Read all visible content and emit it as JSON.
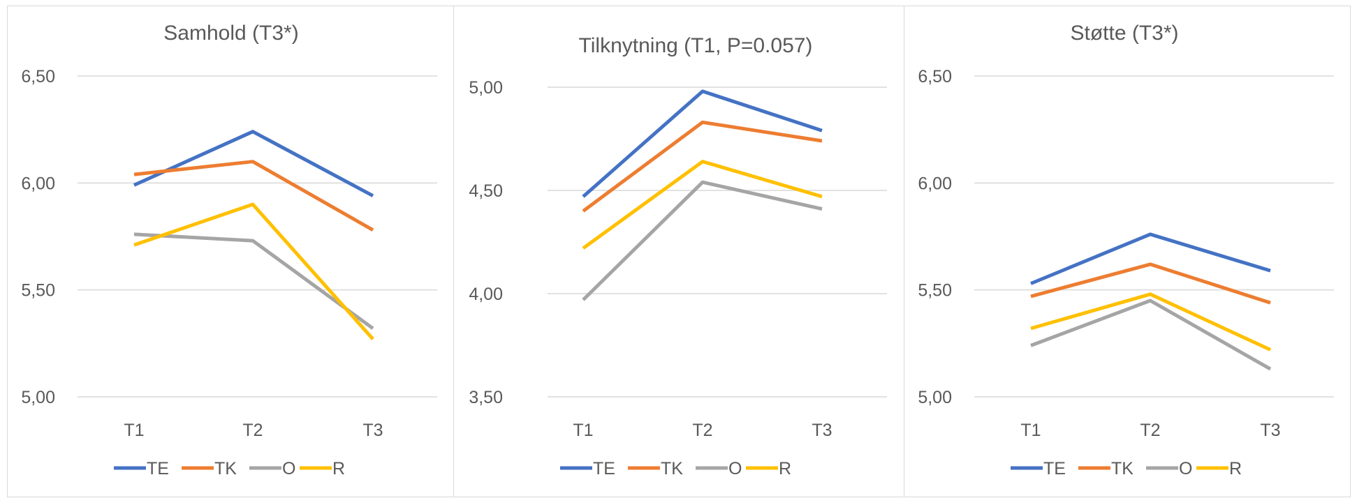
{
  "chart_data": [
    {
      "type": "line",
      "title": "Samhold (T3*)",
      "categories": [
        "T1",
        "T2",
        "T3"
      ],
      "ylim": [
        5.0,
        6.5
      ],
      "yticks": [
        "5,00",
        "5,50",
        "6,00",
        "6,50"
      ],
      "grid": true,
      "legend_position": "bottom",
      "series": [
        {
          "name": "TE",
          "values": [
            5.99,
            6.24,
            5.94
          ],
          "color": "#4472c4"
        },
        {
          "name": "TK",
          "values": [
            6.04,
            6.1,
            5.78
          ],
          "color": "#ed7d31"
        },
        {
          "name": "O",
          "values": [
            5.76,
            5.73,
            5.32
          ],
          "color": "#a5a5a5"
        },
        {
          "name": "R",
          "values": [
            5.71,
            5.9,
            5.27
          ],
          "color": "#ffc000"
        }
      ]
    },
    {
      "type": "line",
      "title": "Tilknytning (T1, P=0.057)",
      "categories": [
        "T1",
        "T2",
        "T3"
      ],
      "ylim": [
        3.5,
        5.0
      ],
      "yticks": [
        "3,50",
        "4,00",
        "4,50",
        "5,00"
      ],
      "grid": true,
      "legend_position": "bottom",
      "series": [
        {
          "name": "TE",
          "values": [
            4.47,
            4.98,
            4.79
          ],
          "color": "#4472c4"
        },
        {
          "name": "TK",
          "values": [
            4.4,
            4.83,
            4.74
          ],
          "color": "#ed7d31"
        },
        {
          "name": "O",
          "values": [
            3.97,
            4.54,
            4.41
          ],
          "color": "#a5a5a5"
        },
        {
          "name": "R",
          "values": [
            4.22,
            4.64,
            4.47
          ],
          "color": "#ffc000"
        }
      ]
    },
    {
      "type": "line",
      "title": "Støtte (T3*)",
      "categories": [
        "T1",
        "T2",
        "T3"
      ],
      "ylim": [
        5.0,
        6.5
      ],
      "yticks": [
        "5,00",
        "5,50",
        "6,00",
        "6,50"
      ],
      "grid": true,
      "legend_position": "bottom",
      "series": [
        {
          "name": "TE",
          "values": [
            5.53,
            5.76,
            5.59
          ],
          "color": "#4472c4"
        },
        {
          "name": "TK",
          "values": [
            5.47,
            5.62,
            5.44
          ],
          "color": "#ed7d31"
        },
        {
          "name": "O",
          "values": [
            5.24,
            5.45,
            5.13
          ],
          "color": "#a5a5a5"
        },
        {
          "name": "R",
          "values": [
            5.32,
            5.48,
            5.22
          ],
          "color": "#ffc000"
        }
      ]
    }
  ]
}
